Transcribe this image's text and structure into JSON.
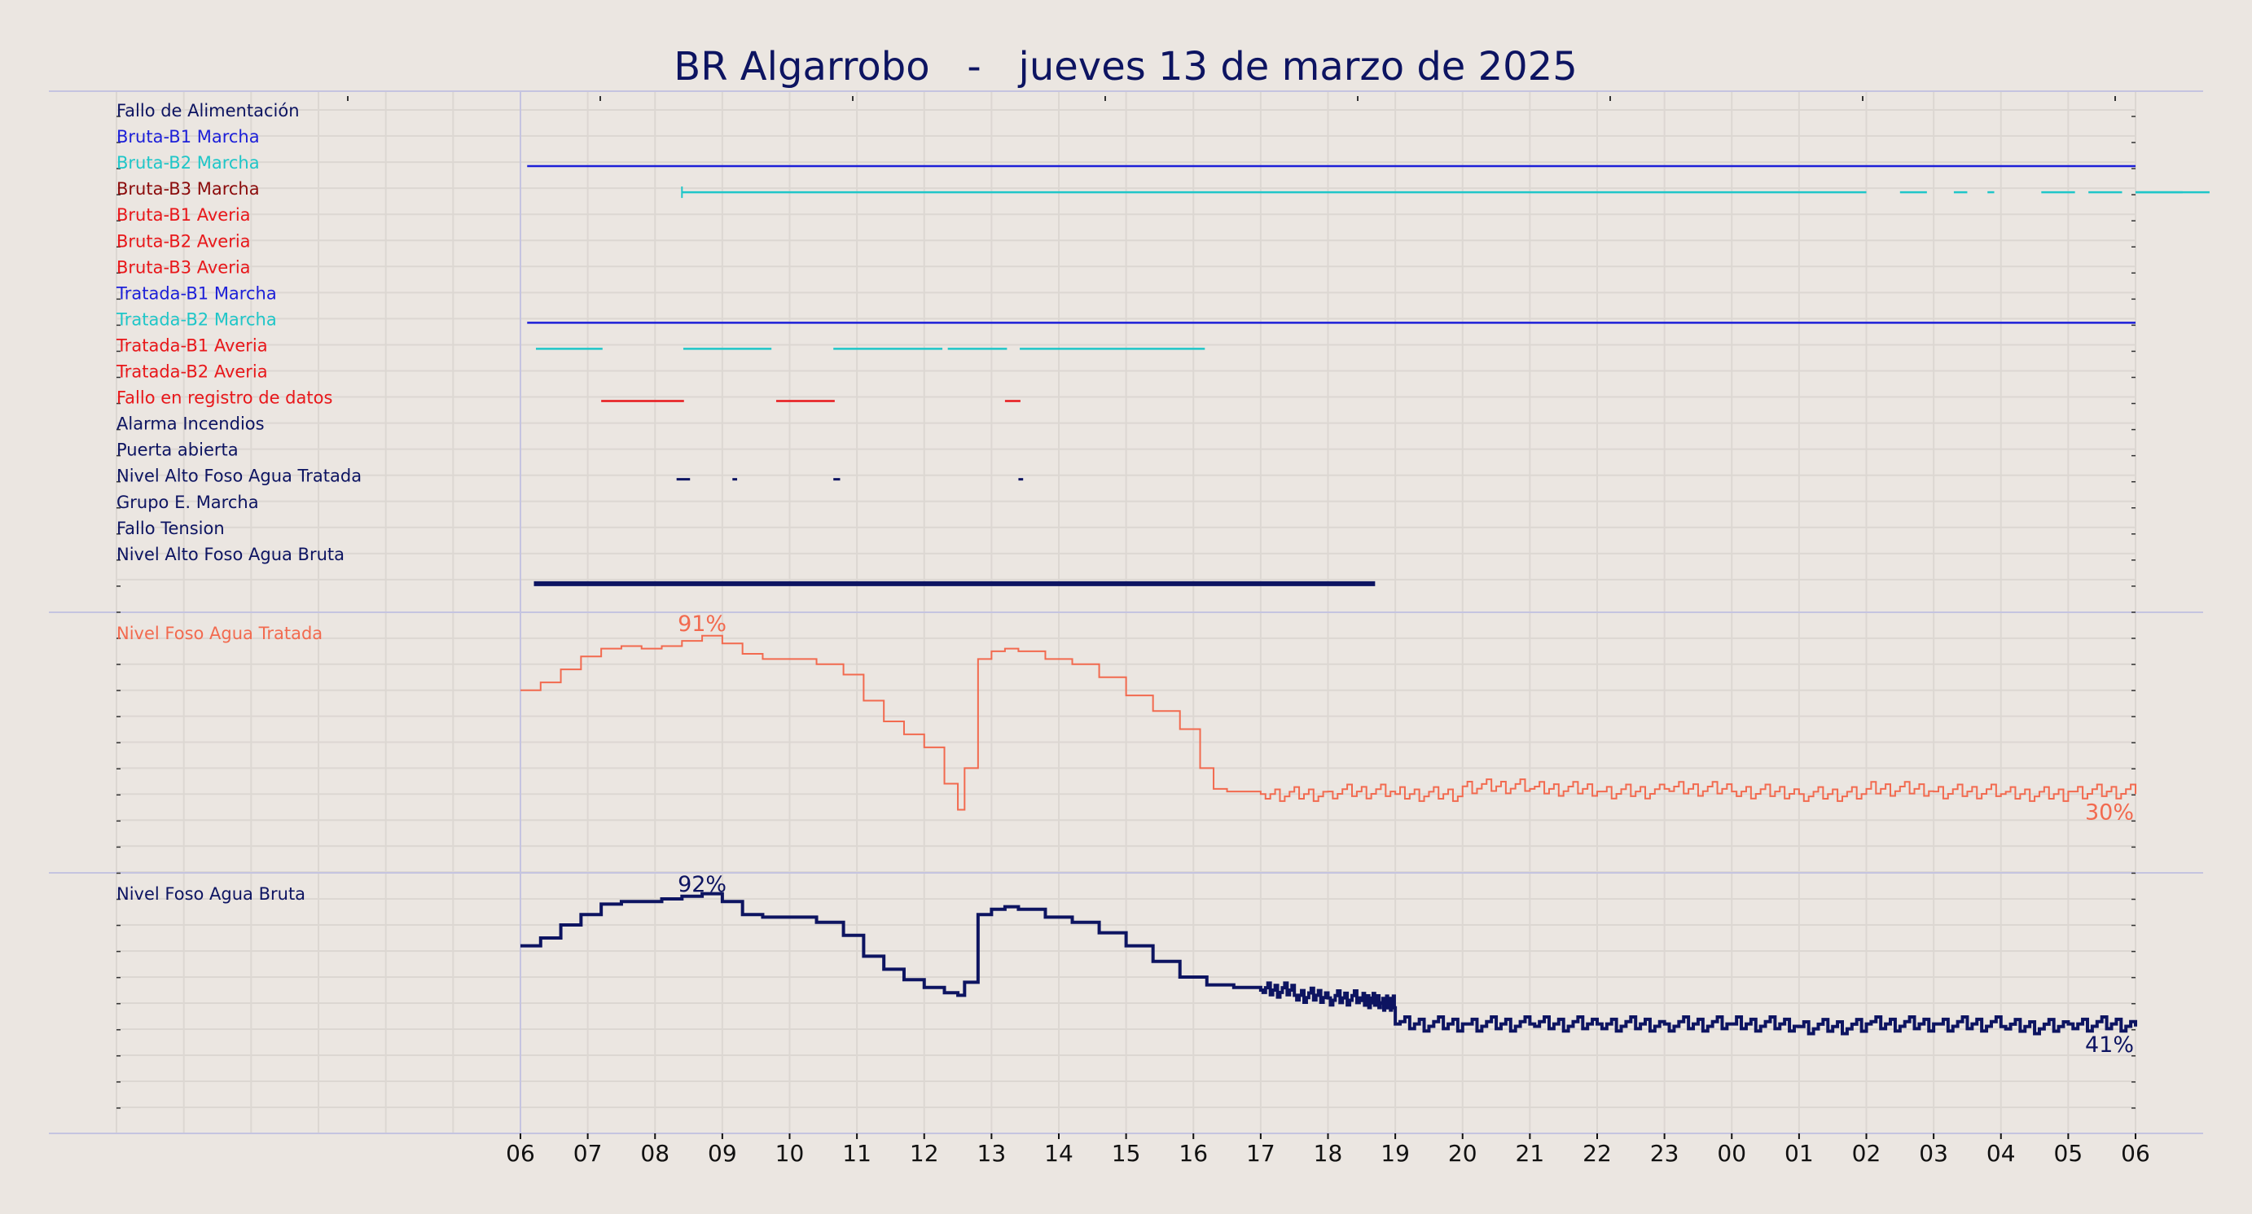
{
  "chart_data": {
    "type": "line",
    "title": "BR Algarrobo   -   jueves 13 de marzo de 2025",
    "x_axis": {
      "tick_labels": [
        "06",
        "07",
        "08",
        "09",
        "10",
        "11",
        "12",
        "13",
        "14",
        "15",
        "16",
        "17",
        "18",
        "19",
        "20",
        "21",
        "22",
        "23",
        "00",
        "01",
        "02",
        "03",
        "04",
        "05",
        "06"
      ],
      "range_hours": [
        0,
        24
      ]
    },
    "digital_signals": [
      {
        "name": "Fallo de Alimentación",
        "color": "#0d1461",
        "segments": []
      },
      {
        "name": "Bruta-B1 Marcha",
        "color": "#1c1fd8",
        "segments": [
          [
            0.1,
            24
          ]
        ]
      },
      {
        "name": "Bruta-B2 Marcha",
        "color": "#1fc6c8",
        "segments": [
          [
            2.4,
            20.0
          ],
          [
            20.5,
            20.9
          ],
          [
            21.3,
            21.5
          ],
          [
            21.8,
            21.9
          ],
          [
            22.6,
            23.1
          ],
          [
            23.3,
            23.8
          ],
          [
            24.0,
            24.4
          ],
          [
            24.7,
            24.9
          ],
          [
            25.1,
            25.4
          ]
        ]
      },
      {
        "name": "Bruta-B3 Marcha",
        "color": "#8b0b0b",
        "segments": []
      },
      {
        "name": "Bruta-B1 Averia",
        "color": "#e8171a",
        "segments": []
      },
      {
        "name": "Bruta-B2 Averia",
        "color": "#e8171a",
        "segments": []
      },
      {
        "name": "Bruta-B3 Averia",
        "color": "#e8171a",
        "segments": []
      },
      {
        "name": "Tratada-B1 Marcha",
        "color": "#1c1fd8",
        "segments": [
          [
            0.1,
            24
          ]
        ]
      },
      {
        "name": "Tratada-B2 Marcha",
        "color": "#1fc6c8",
        "segments": [
          [
            0.23,
            1.22
          ],
          [
            2.42,
            3.73
          ],
          [
            4.65,
            6.27
          ],
          [
            6.35,
            7.23
          ],
          [
            7.42,
            10.17
          ]
        ]
      },
      {
        "name": "Tratada-B1 Averia",
        "color": "#e8171a",
        "segments": []
      },
      {
        "name": "Tratada-B2 Averia",
        "color": "#e8171a",
        "segments": [
          [
            1.2,
            2.43
          ],
          [
            3.8,
            4.67
          ],
          [
            7.2,
            7.43
          ]
        ]
      },
      {
        "name": "Fallo en registro de datos",
        "color": "#e8171a",
        "segments": []
      },
      {
        "name": "Alarma Incendios",
        "color": "#0d1461",
        "segments": []
      },
      {
        "name": "Puerta abierta",
        "color": "#0d1461",
        "segments": [
          [
            2.32,
            2.52
          ],
          [
            3.15,
            3.22
          ],
          [
            4.65,
            4.75
          ],
          [
            7.4,
            7.47
          ]
        ]
      },
      {
        "name": "Nivel Alto Foso Agua Tratada",
        "color": "#0d1461",
        "segments": []
      },
      {
        "name": "Grupo E. Marcha",
        "color": "#0d1461",
        "segments": []
      },
      {
        "name": "Fallo Tension",
        "color": "#0d1461",
        "segments": []
      },
      {
        "name": "Nivel Alto Foso Agua Bruta",
        "color": "#0d1461",
        "segments": [
          [
            0.2,
            12.7
          ]
        ]
      }
    ],
    "series": [
      {
        "name": "Nivel Foso Agua Tratada",
        "color": "#f26a4f",
        "unit": "%",
        "ylim": [
          0,
          100
        ],
        "max_label": "91%",
        "max_at_hour": 2.7,
        "last_label": "30%",
        "x": [
          0,
          0.3,
          0.6,
          0.9,
          1.2,
          1.5,
          1.8,
          2.1,
          2.4,
          2.7,
          3.0,
          3.3,
          3.6,
          4.0,
          4.4,
          4.8,
          5.1,
          5.4,
          5.7,
          6.0,
          6.3,
          6.5,
          6.6,
          6.8,
          7.0,
          7.2,
          7.4,
          7.8,
          8.2,
          8.6,
          9.0,
          9.4,
          9.8,
          10.1,
          10.3,
          10.5,
          11,
          12,
          13,
          14,
          15,
          16,
          17,
          18,
          19,
          20,
          21,
          22,
          23,
          24
        ],
        "y": [
          70,
          73,
          78,
          83,
          86,
          87,
          86,
          87,
          89,
          91,
          88,
          84,
          82,
          82,
          80,
          76,
          66,
          58,
          53,
          48,
          34,
          24,
          40,
          82,
          85,
          86,
          85,
          82,
          80,
          75,
          68,
          62,
          55,
          40,
          32,
          31,
          30,
          31,
          30,
          33,
          32,
          31,
          32,
          31,
          30,
          32,
          31,
          30,
          31,
          30
        ]
      },
      {
        "name": "Nivel Foso Agua Bruta",
        "color": "#0d1461",
        "unit": "%",
        "ylim": [
          0,
          100
        ],
        "max_label": "92%",
        "max_at_hour": 2.7,
        "last_label": "41%",
        "x": [
          0,
          0.3,
          0.6,
          0.9,
          1.2,
          1.5,
          1.8,
          2.1,
          2.4,
          2.7,
          3.0,
          3.3,
          3.6,
          4.0,
          4.4,
          4.8,
          5.1,
          5.4,
          5.7,
          6.0,
          6.3,
          6.5,
          6.6,
          6.8,
          7.0,
          7.2,
          7.4,
          7.8,
          8.2,
          8.6,
          9.0,
          9.4,
          9.8,
          10.2,
          10.6,
          11,
          11.5,
          12,
          12.5,
          12.8,
          13.0,
          14,
          15,
          16,
          17,
          18,
          19,
          20,
          21,
          22,
          23,
          24
        ],
        "y": [
          72,
          75,
          80,
          84,
          88,
          89,
          89,
          90,
          91,
          92,
          89,
          84,
          83,
          83,
          81,
          76,
          68,
          63,
          59,
          56,
          54,
          53,
          58,
          84,
          86,
          87,
          86,
          83,
          81,
          77,
          72,
          66,
          60,
          57,
          56,
          55,
          53,
          52,
          51,
          50,
          42,
          42,
          42,
          42,
          42,
          42,
          41,
          42,
          42,
          41,
          42,
          41
        ]
      }
    ]
  }
}
